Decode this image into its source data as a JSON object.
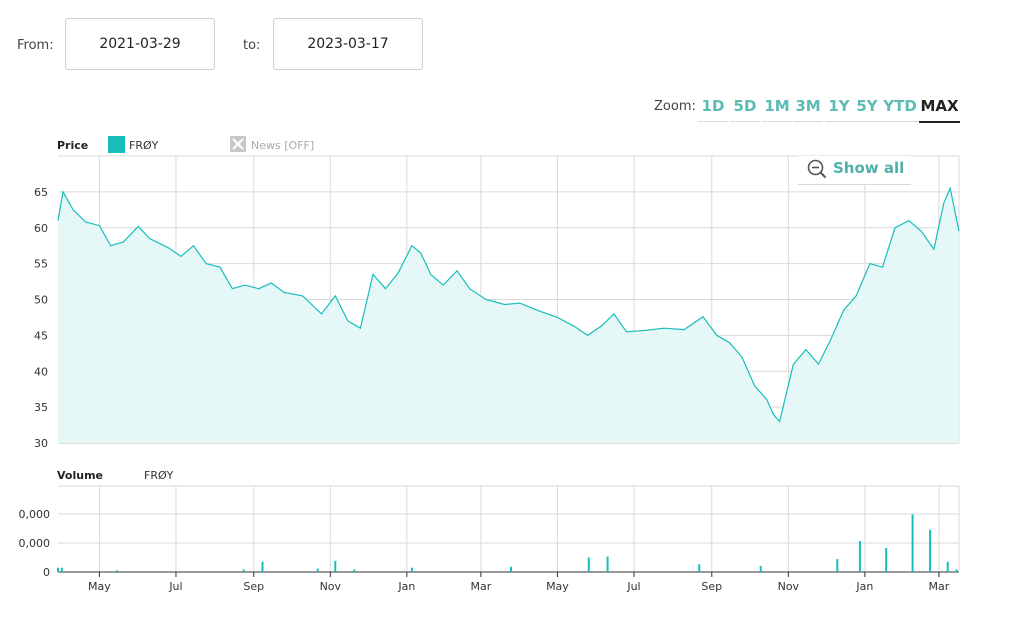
{
  "range": {
    "from_label": "From:",
    "from_value": "2021-03-29",
    "to_label": "to:",
    "to_value": "2023-03-17"
  },
  "zoom": {
    "label": "Zoom:",
    "options": [
      "1D",
      "5D",
      "1M",
      "3M",
      "1Y",
      "5Y",
      "YTD",
      "MAX"
    ],
    "active": "MAX"
  },
  "show_all_label": "Show all",
  "colors": {
    "accent": "#17bebb",
    "fill": "#e6f7f7",
    "grid": "#d9d9d9"
  },
  "chart_data": [
    {
      "type": "area",
      "title": "Price",
      "legend": {
        "series_name": "FRØY",
        "news_toggle": "News [OFF]"
      },
      "ylim": [
        30,
        70
      ],
      "yticks": [
        30,
        35,
        40,
        45,
        50,
        55,
        60,
        65
      ],
      "xticks": [
        "May",
        "Jul",
        "Sep",
        "Nov",
        "Jan",
        "Mar",
        "May",
        "Jul",
        "Sep",
        "Nov",
        "Jan",
        "Mar"
      ],
      "series": [
        {
          "name": "FRØY",
          "x": [
            "2021-03-29",
            "2021-04-02",
            "2021-04-10",
            "2021-04-20",
            "2021-05-01",
            "2021-05-10",
            "2021-05-20",
            "2021-06-01",
            "2021-06-10",
            "2021-06-25",
            "2021-07-05",
            "2021-07-15",
            "2021-07-25",
            "2021-08-05",
            "2021-08-15",
            "2021-08-25",
            "2021-09-05",
            "2021-09-15",
            "2021-09-25",
            "2021-10-10",
            "2021-10-25",
            "2021-11-05",
            "2021-11-15",
            "2021-11-25",
            "2021-12-05",
            "2021-12-15",
            "2021-12-25",
            "2022-01-05",
            "2022-01-12",
            "2022-01-20",
            "2022-01-30",
            "2022-02-10",
            "2022-02-20",
            "2022-03-05",
            "2022-03-20",
            "2022-04-01",
            "2022-04-15",
            "2022-05-01",
            "2022-05-15",
            "2022-05-25",
            "2022-06-05",
            "2022-06-15",
            "2022-06-25",
            "2022-07-10",
            "2022-07-25",
            "2022-08-10",
            "2022-08-25",
            "2022-09-05",
            "2022-09-15",
            "2022-09-25",
            "2022-10-05",
            "2022-10-15",
            "2022-10-20",
            "2022-10-25",
            "2022-11-05",
            "2022-11-15",
            "2022-11-25",
            "2022-12-05",
            "2022-12-15",
            "2022-12-25",
            "2023-01-05",
            "2023-01-15",
            "2023-01-25",
            "2023-02-05",
            "2023-02-15",
            "2023-02-25",
            "2023-03-05",
            "2023-03-10",
            "2023-03-17"
          ],
          "values": [
            61,
            65,
            62.5,
            60.8,
            60.3,
            57.5,
            58,
            60.2,
            58.5,
            57.2,
            56,
            57.5,
            55,
            54.5,
            51.5,
            52,
            51.5,
            52.3,
            51,
            50.5,
            48,
            50.5,
            47,
            46,
            53.5,
            51.5,
            53.7,
            57.5,
            56.5,
            53.5,
            52,
            54,
            51.5,
            50,
            49.3,
            49.5,
            48.5,
            47.5,
            46.2,
            45,
            46.3,
            48,
            45.5,
            45.7,
            46,
            45.8,
            47.6,
            45,
            44,
            42,
            38,
            36,
            34,
            33,
            41,
            43,
            41,
            44.5,
            48.5,
            50.5,
            55,
            54.5,
            60,
            61,
            59.5,
            57,
            63.5,
            65.5,
            59.5
          ]
        }
      ]
    },
    {
      "type": "bar",
      "title": "Volume",
      "legend": {
        "series_name": "FRØY"
      },
      "yticks": [
        "0",
        "0,000",
        "0,000"
      ],
      "series": [
        {
          "name": "FRØY",
          "x": [
            "2021-03-29",
            "2021-04-01",
            "2021-05-15",
            "2021-08-24",
            "2021-09-08",
            "2021-10-22",
            "2021-11-05",
            "2021-11-20",
            "2022-01-05",
            "2022-03-25",
            "2022-05-26",
            "2022-06-10",
            "2022-08-22",
            "2022-10-10",
            "2022-12-10",
            "2022-12-28",
            "2023-01-18",
            "2023-02-08",
            "2023-02-22",
            "2023-03-08",
            "2023-03-15"
          ],
          "values": [
            5,
            5,
            2,
            3,
            12,
            4,
            13,
            3,
            5,
            6,
            17,
            18,
            9,
            7,
            15,
            36,
            28,
            67,
            49,
            12,
            3
          ]
        }
      ]
    }
  ]
}
